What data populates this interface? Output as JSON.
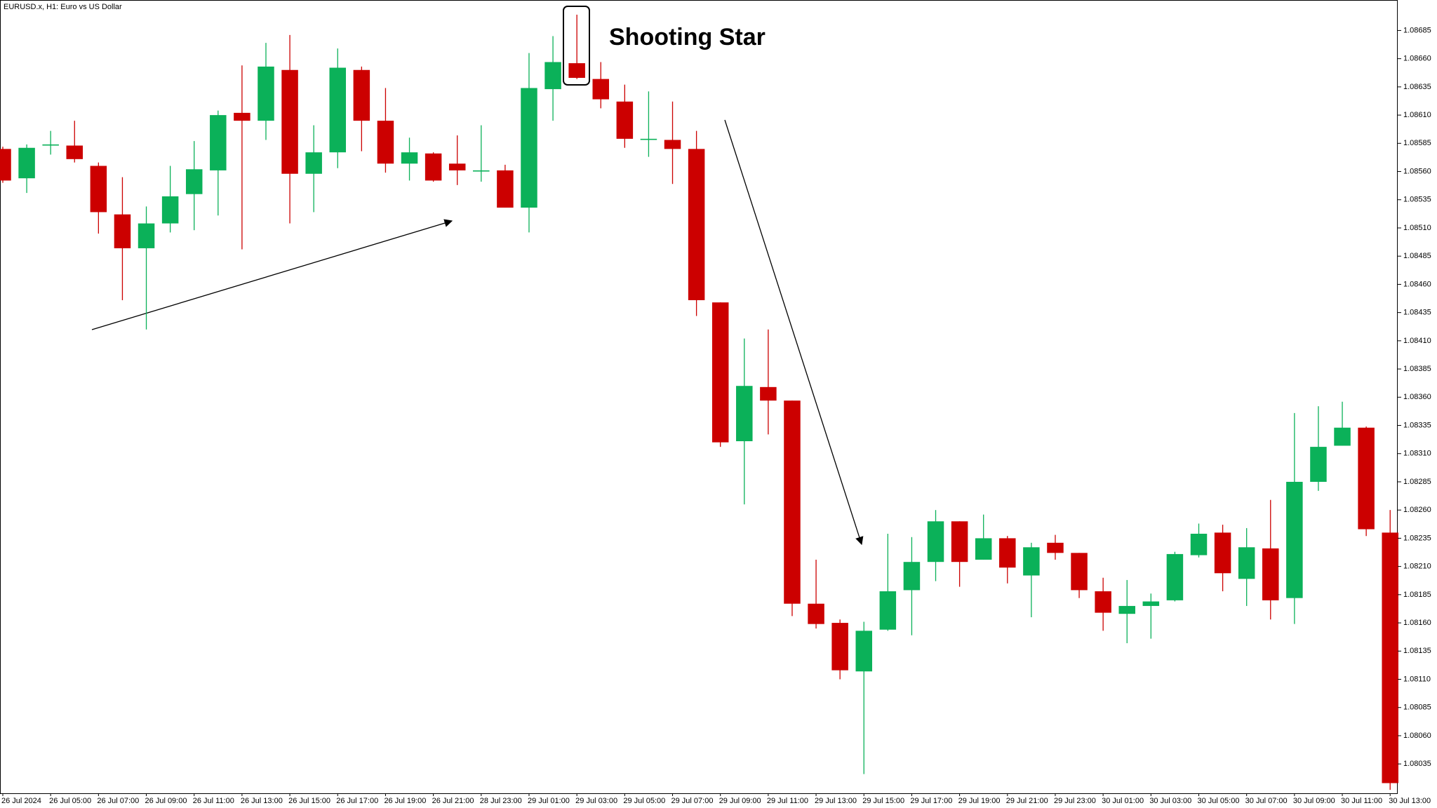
{
  "chart_data": {
    "type": "candlestick",
    "title": "EURUSD.x, H1:  Euro vs US Dollar",
    "annotation": "Shooting Star",
    "up_color": "#0bb159",
    "down_color": "#cc0000",
    "categories": [
      "26 Jul 2024",
      null,
      "26 Jul 05:00",
      null,
      "26 Jul 07:00",
      null,
      "26 Jul 09:00",
      null,
      "26 Jul 11:00",
      null,
      "26 Jul 13:00",
      null,
      "26 Jul 15:00",
      null,
      "26 Jul 17:00",
      null,
      "26 Jul 19:00",
      null,
      "26 Jul 21:00",
      null,
      "28 Jul 23:00",
      null,
      "29 Jul 01:00",
      null,
      "29 Jul 03:00",
      null,
      "29 Jul 05:00",
      null,
      "29 Jul 07:00",
      null,
      "29 Jul 09:00",
      null,
      "29 Jul 11:00",
      null,
      "29 Jul 13:00",
      null,
      "29 Jul 15:00",
      null,
      "29 Jul 17:00",
      null,
      "29 Jul 19:00",
      null,
      "29 Jul 21:00",
      null,
      "29 Jul 23:00",
      null,
      "30 Jul 01:00",
      null,
      "30 Jul 03:00",
      null,
      "30 Jul 05:00",
      null,
      "30 Jul 07:00",
      null,
      "30 Jul 09:00",
      null,
      "30 Jul 11:00",
      null,
      "30 Jul 13:00"
    ],
    "open": [
      1.0858,
      1.08554,
      1.08583,
      1.08583,
      1.08565,
      1.08522,
      1.08492,
      1.08514,
      1.0854,
      1.08561,
      1.08612,
      1.08605,
      1.0865,
      1.08558,
      1.08577,
      1.0865,
      1.08605,
      1.08567,
      1.08576,
      1.08567,
      1.0856,
      1.08561,
      1.08528,
      1.08633,
      1.08656,
      1.08642,
      1.08622,
      1.08588,
      1.08588,
      1.0858,
      1.08444,
      1.08321,
      1.08369,
      1.08357,
      1.08177,
      1.0816,
      1.08117,
      1.08154,
      1.08189,
      1.08214,
      1.0825,
      1.08216,
      1.08235,
      1.08202,
      1.08231,
      1.08222,
      1.08188,
      1.08168,
      1.08175,
      1.0818,
      1.0822,
      1.0824,
      1.08199,
      1.08226,
      1.08182,
      1.08285,
      1.08317,
      1.08333,
      1.0824
    ],
    "high": [
      1.08582,
      1.08584,
      1.08596,
      1.08605,
      1.08568,
      1.08555,
      1.08529,
      1.08565,
      1.08587,
      1.08614,
      1.08654,
      1.08674,
      1.08681,
      1.08601,
      1.08669,
      1.08653,
      1.08634,
      1.0859,
      1.08577,
      1.08592,
      1.08601,
      1.08566,
      1.08665,
      1.0868,
      1.08699,
      1.08657,
      1.08637,
      1.08631,
      1.08622,
      1.08596,
      1.08444,
      1.08412,
      1.0842,
      1.08357,
      1.08216,
      1.08163,
      1.08161,
      1.08239,
      1.08236,
      1.0826,
      1.0825,
      1.08256,
      1.08237,
      1.08231,
      1.08238,
      1.08222,
      1.082,
      1.08198,
      1.08186,
      1.08223,
      1.08248,
      1.08247,
      1.08244,
      1.08269,
      1.08346,
      1.08352,
      1.08356,
      1.08334,
      1.0826
    ],
    "low": [
      1.0855,
      1.08541,
      1.08575,
      1.08568,
      1.08505,
      1.08446,
      1.0842,
      1.08506,
      1.08508,
      1.08521,
      1.08491,
      1.08588,
      1.08514,
      1.08524,
      1.08563,
      1.08578,
      1.08559,
      1.08552,
      1.08551,
      1.08548,
      1.08551,
      1.08528,
      1.08506,
      1.08605,
      1.08642,
      1.08616,
      1.08581,
      1.08573,
      1.08549,
      1.08432,
      1.08316,
      1.08265,
      1.08327,
      1.08166,
      1.08155,
      1.0811,
      1.08026,
      1.08153,
      1.08149,
      1.08197,
      1.08192,
      1.08216,
      1.08195,
      1.08165,
      1.08216,
      1.08182,
      1.08153,
      1.08142,
      1.08146,
      1.08179,
      1.08218,
      1.08188,
      1.08175,
      1.08163,
      1.08159,
      1.08277,
      1.08317,
      1.08237,
      1.08012
    ],
    "close": [
      1.08552,
      1.08581,
      1.08584,
      1.08571,
      1.08524,
      1.08492,
      1.08514,
      1.08538,
      1.08562,
      1.0861,
      1.08605,
      1.08653,
      1.08558,
      1.08577,
      1.08652,
      1.08605,
      1.08567,
      1.08577,
      1.08552,
      1.08561,
      1.08561,
      1.08528,
      1.08634,
      1.08657,
      1.08643,
      1.08624,
      1.08589,
      1.08589,
      1.0858,
      1.08446,
      1.0832,
      1.0837,
      1.08357,
      1.08177,
      1.08159,
      1.08118,
      1.08153,
      1.08188,
      1.08214,
      1.0825,
      1.08214,
      1.08235,
      1.08209,
      1.08227,
      1.08222,
      1.08189,
      1.08169,
      1.08175,
      1.08179,
      1.08221,
      1.08239,
      1.08204,
      1.08227,
      1.0818,
      1.08285,
      1.08316,
      1.08333,
      1.08243,
      1.08018
    ],
    "ylim": [
      1.08009,
      1.08712
    ],
    "yticks": [
      1.08035,
      {
        "value": 1.0806,
        "label": "1.08060"
      },
      1.08085,
      {
        "value": 1.0811,
        "label": "1.08110"
      },
      1.08135,
      {
        "value": 1.0816,
        "label": "1.08160"
      },
      1.08185,
      {
        "value": 1.0821,
        "label": "1.08210"
      },
      1.08235,
      {
        "value": 1.0826,
        "label": "1.08260"
      },
      1.08285,
      {
        "value": 1.0831,
        "label": "1.08310"
      },
      1.08335,
      {
        "value": 1.0836,
        "label": "1.08360"
      },
      1.08385,
      {
        "value": 1.0841,
        "label": "1.08410"
      },
      1.08435,
      {
        "value": 1.0846,
        "label": "1.08460"
      },
      1.08485,
      {
        "value": 1.0851,
        "label": "1.08510"
      },
      1.08535,
      {
        "value": 1.0856,
        "label": "1.08560"
      },
      1.08585,
      {
        "value": 1.0861,
        "label": "1.08610"
      },
      1.08635,
      {
        "value": 1.0866,
        "label": "1.08660"
      },
      1.08685
    ],
    "grid": false
  }
}
